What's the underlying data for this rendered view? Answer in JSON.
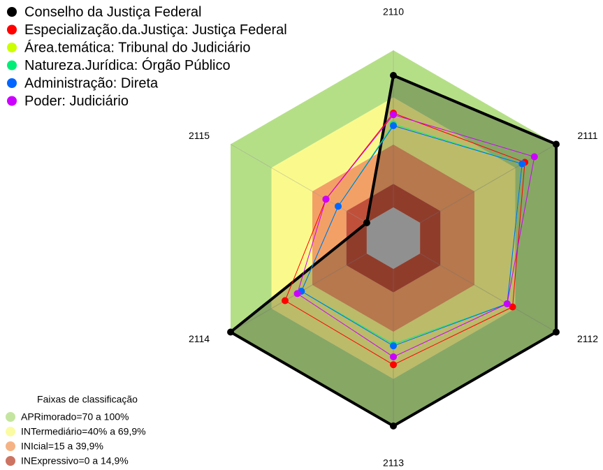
{
  "chart_data": {
    "type": "radar",
    "categories": [
      "2110",
      "2111",
      "2112",
      "2113",
      "2114",
      "2115"
    ],
    "rlim": [
      0,
      100
    ],
    "series": [
      {
        "name": "Conselho da Justiça Federal",
        "color": "#000000",
        "values": [
          84,
          100,
          100,
          100,
          100,
          0
        ]
      },
      {
        "name": "Especialização.da.Justiça: Justiça Federal",
        "color": "#ff0000",
        "values": [
          60,
          77,
          68,
          61,
          60,
          30
        ]
      },
      {
        "name": "Área.temática: Tribunal do Judiciário",
        "color": "#ccff00",
        "values": [
          53,
          75,
          64,
          49,
          48,
          21
        ]
      },
      {
        "name": "Natureza.Jurídica: Órgão Público",
        "color": "#00ee77",
        "values": [
          53,
          75,
          64,
          48,
          48,
          21
        ]
      },
      {
        "name": "Administração: Direta",
        "color": "#0066ff",
        "values": [
          52,
          75,
          64,
          49,
          48,
          21
        ]
      },
      {
        "name": "Poder: Judiciário",
        "color": "#cc00ff",
        "values": [
          59,
          84,
          64,
          56,
          51,
          30
        ]
      }
    ],
    "bands_title": "Faixas de classificação",
    "bands": [
      {
        "label": "APRimorado=70 a 100%",
        "from": 70,
        "to": 100,
        "color": "#b5df87"
      },
      {
        "label": "INTermediário=40% a 69,9%",
        "from": 40,
        "to": 70,
        "color": "#fafa8c"
      },
      {
        "label": "INIcial=15 a 39,9%",
        "from": 15,
        "to": 40,
        "color": "#f3a066"
      },
      {
        "label": "INExpressivo=0 a 14,9%",
        "from": 0,
        "to": 15,
        "color": "#c0503a"
      }
    ]
  }
}
